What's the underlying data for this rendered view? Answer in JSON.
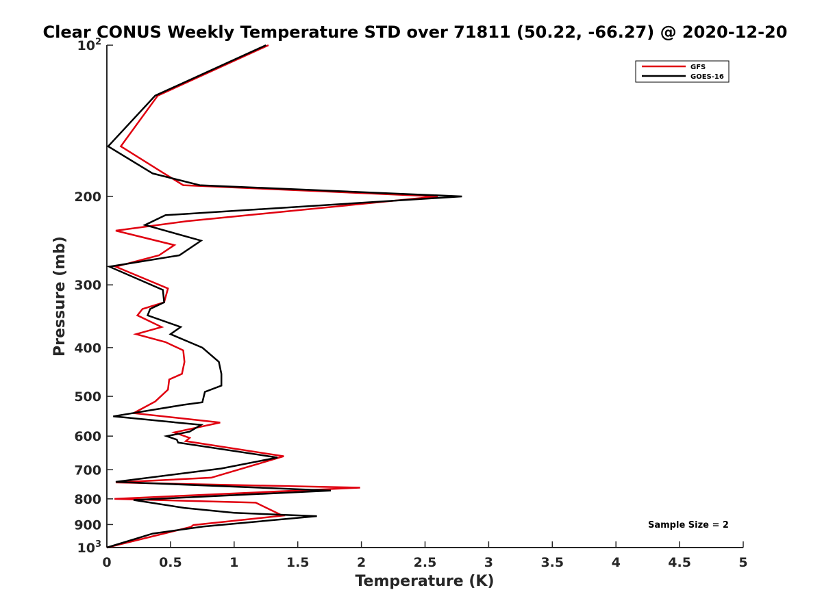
{
  "chart_data": {
    "type": "line",
    "title": "Clear CONUS Weekly Temperature STD over 71811 (50.22, -66.27) @ 2020-12-20",
    "xlabel": "Temperature (K)",
    "ylabel": "Pressure (mb)",
    "xlim": [
      0,
      5
    ],
    "ylim": [
      100,
      1000
    ],
    "yscale": "log",
    "y_reversed": true,
    "grid": false,
    "legend_position": "top-right",
    "xticks": [
      0,
      0.5,
      1,
      1.5,
      2,
      2.5,
      3,
      3.5,
      4,
      4.5,
      5
    ],
    "xtick_labels": [
      "0",
      "0.5",
      "1",
      "1.5",
      "2",
      "2.5",
      "3",
      "3.5",
      "4",
      "4.5",
      "5"
    ],
    "yticks": [
      200,
      300,
      400,
      500,
      600,
      700,
      800,
      900
    ],
    "ytick_labels": [
      "200",
      "300",
      "400",
      "500",
      "600",
      "700",
      "800",
      "900"
    ],
    "ytick_extremes": [
      {
        "value": 100,
        "base": "10",
        "exp": "2"
      },
      {
        "value": 1000,
        "base": "10",
        "exp": "3"
      }
    ],
    "series": [
      {
        "name": "GFS",
        "color": "#e0000f",
        "x": [
          1.27,
          0.4,
          0.11,
          0.45,
          0.6,
          2.6,
          0.63,
          0.07,
          0.53,
          0.41,
          0.07,
          0.48,
          0.45,
          0.28,
          0.24,
          0.43,
          0.23,
          0.46,
          0.6,
          0.61,
          0.59,
          0.49,
          0.48,
          0.38,
          0.21,
          0.89,
          0.53,
          0.65,
          0.62,
          1.39,
          0.82,
          0.07,
          1.99,
          0.06,
          1.17,
          1.38,
          0.68,
          0.66,
          0.0
        ],
        "y": [
          100,
          126,
          159,
          180,
          190,
          200,
          224,
          234,
          250,
          262,
          276,
          305,
          325,
          335,
          345,
          364,
          376,
          390,
          405,
          427,
          451,
          463,
          485,
          512,
          540,
          564,
          590,
          605,
          614,
          658,
          726,
          742,
          760,
          800,
          814,
          864,
          902,
          910,
          1000
        ]
      },
      {
        "name": "GOES-16",
        "color": "#000000",
        "x": [
          1.25,
          0.38,
          0.01,
          0.36,
          0.73,
          2.79,
          0.46,
          0.3,
          0.74,
          0.57,
          0.02,
          0.44,
          0.45,
          0.34,
          0.32,
          0.58,
          0.5,
          0.75,
          0.88,
          0.9,
          0.9,
          0.77,
          0.75,
          0.6,
          0.05,
          0.74,
          0.65,
          0.47,
          0.55,
          0.56,
          1.34,
          0.9,
          0.07,
          1.76,
          0.21,
          0.61,
          1.0,
          1.65,
          0.76,
          0.36,
          0.0
        ],
        "y": [
          100,
          126,
          159,
          180,
          190,
          200,
          218,
          228,
          245,
          262,
          276,
          307,
          325,
          335,
          345,
          364,
          376,
          400,
          427,
          451,
          476,
          490,
          514,
          520,
          548,
          570,
          588,
          600,
          610,
          618,
          662,
          696,
          740,
          770,
          804,
          834,
          853,
          866,
          908,
          938,
          1000
        ]
      }
    ],
    "annotation": "Sample Size = 2"
  }
}
